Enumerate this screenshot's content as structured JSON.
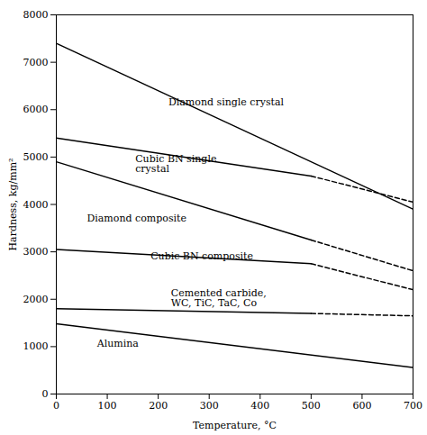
{
  "chart_data": {
    "type": "line",
    "title": "",
    "xlabel": "Temperature, °C",
    "ylabel": "Hardness, kg/mm²",
    "xlim": [
      0,
      700
    ],
    "ylim": [
      0,
      8000
    ],
    "xticks": [
      0,
      100,
      200,
      300,
      400,
      500,
      600,
      700
    ],
    "yticks": [
      0,
      1000,
      2000,
      3000,
      4000,
      5000,
      6000,
      7000,
      8000
    ],
    "color": "#000000",
    "grid": false,
    "series": [
      {
        "segments": [
          {
            "x": [
              0,
              700
            ],
            "values": [
              7400,
              3900
            ],
            "line_style": "solid"
          }
        ]
      },
      {
        "segments": [
          {
            "x": [
              0,
              500
            ],
            "values": [
              5400,
              4600
            ],
            "line_style": "solid"
          },
          {
            "x": [
              500,
              700
            ],
            "values": [
              4600,
              4050
            ],
            "line_style": "dashed"
          }
        ]
      },
      {
        "segments": [
          {
            "x": [
              0,
              500
            ],
            "values": [
              4900,
              3250
            ],
            "line_style": "solid"
          },
          {
            "x": [
              500,
              700
            ],
            "values": [
              3250,
              2600
            ],
            "line_style": "dashed"
          }
        ]
      },
      {
        "segments": [
          {
            "x": [
              0,
              500
            ],
            "values": [
              3050,
              2750
            ],
            "line_style": "solid"
          },
          {
            "x": [
              500,
              700
            ],
            "values": [
              2750,
              2200
            ],
            "line_style": "dashed"
          }
        ]
      },
      {
        "segments": [
          {
            "x": [
              0,
              500
            ],
            "values": [
              1800,
              1700
            ],
            "line_style": "solid"
          },
          {
            "x": [
              500,
              700
            ],
            "values": [
              1700,
              1650
            ],
            "line_style": "dashed"
          }
        ]
      },
      {
        "segments": [
          {
            "x": [
              0,
              700
            ],
            "values": [
              1480,
              560
            ],
            "line_style": "solid"
          }
        ]
      }
    ],
    "annotations": [
      {
        "text": "Diamond single crystal",
        "x": 220,
        "y": 6150
      },
      {
        "text": "Cubic BN single\ncrystal",
        "x": 155,
        "y": 4850
      },
      {
        "text": "Diamond composite",
        "x": 60,
        "y": 3700
      },
      {
        "text": "Cubic BN composite",
        "x": 185,
        "y": 2900
      },
      {
        "text": "Cemented carbide,\nWC, TiC, TaC, Co",
        "x": 225,
        "y": 2020
      },
      {
        "text": "Alumina",
        "x": 80,
        "y": 1060
      }
    ]
  }
}
